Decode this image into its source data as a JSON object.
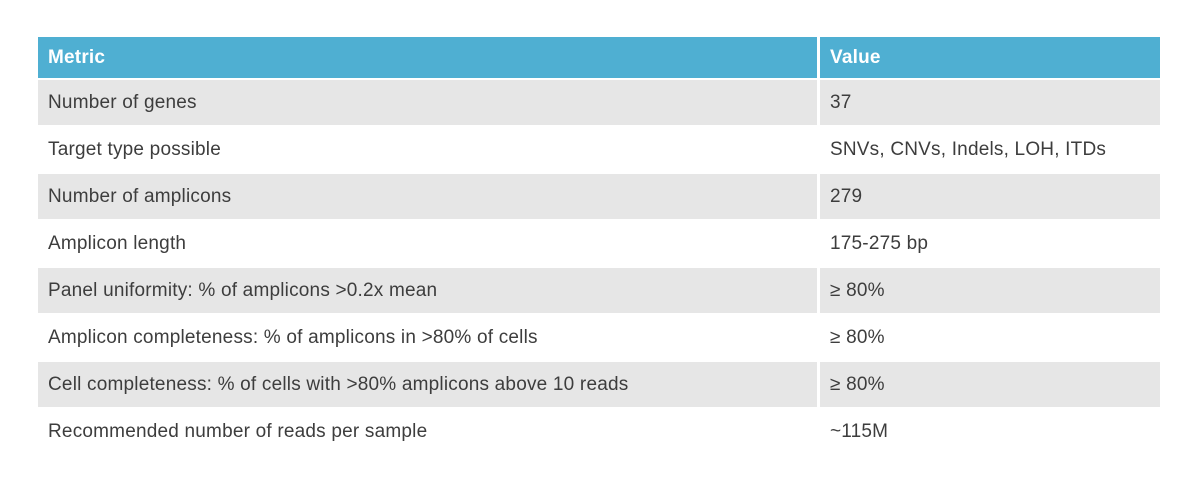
{
  "colors": {
    "header_bg": "#4fafd2",
    "stripe_bg": "#e6e6e6",
    "plain_bg": "#ffffff",
    "header_text": "#ffffff",
    "body_text": "#3d3d3d"
  },
  "table": {
    "columns": [
      "Metric",
      "Value"
    ],
    "rows": [
      {
        "metric": "Number of genes",
        "value": "37"
      },
      {
        "metric": "Target type possible",
        "value": "SNVs, CNVs, Indels, LOH, ITDs"
      },
      {
        "metric": "Number of amplicons",
        "value": "279"
      },
      {
        "metric": "Amplicon length",
        "value": "175-275 bp"
      },
      {
        "metric": "Panel uniformity: % of amplicons >0.2x mean",
        "value": "≥ 80%"
      },
      {
        "metric": "Amplicon completeness: % of amplicons in >80% of cells",
        "value": "≥ 80%"
      },
      {
        "metric": "Cell completeness: % of cells with >80% amplicons above 10 reads",
        "value": "≥ 80%"
      },
      {
        "metric": "Recommended number of reads per sample",
        "value": "~115M"
      }
    ]
  }
}
